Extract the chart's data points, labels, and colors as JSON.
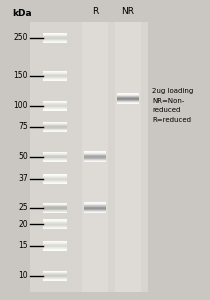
{
  "fig_width": 2.1,
  "fig_height": 3.0,
  "dpi": 100,
  "background_color": "#cac7c2",
  "gel_bg_color": "#d8d5d0",
  "ladder_lane_bg": "#d2cfca",
  "sample_lane_bg": "#dedad5",
  "kda_labels": [
    250,
    150,
    100,
    75,
    50,
    37,
    25,
    20,
    15,
    10
  ],
  "ladder_band_intensities": [
    0.32,
    0.3,
    0.28,
    0.42,
    0.38,
    0.28,
    0.55,
    0.3,
    0.26,
    0.36
  ],
  "R_bands": [
    {
      "kda": 50,
      "darkness": 0.52
    },
    {
      "kda": 25,
      "darkness": 0.6
    }
  ],
  "NR_bands": [
    {
      "kda": 110,
      "darkness": 0.65
    }
  ],
  "lane_R_label": "R",
  "lane_NR_label": "NR",
  "kda_title": "kDa",
  "annotation_lines": [
    "2ug loading",
    "NR=Non-",
    "reduced",
    "R=reduced"
  ],
  "annotation_fontsize": 5.0,
  "label_fontsize": 6.5,
  "kda_fontsize": 5.5,
  "kda_title_fontsize": 6.5
}
